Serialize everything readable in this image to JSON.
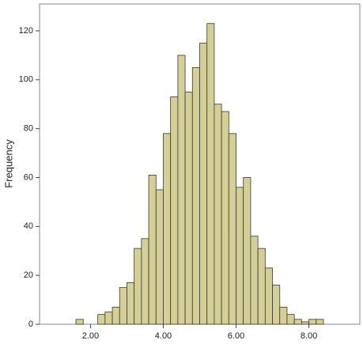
{
  "chart_data": {
    "type": "histogram",
    "y_label": "Frequency",
    "bins": [
      1.6,
      1.8,
      2.0,
      2.2,
      2.4,
      2.6,
      2.8,
      3.0,
      3.2,
      3.4,
      3.6,
      3.8,
      4.0,
      4.2,
      4.4,
      4.6,
      4.8,
      5.0,
      5.2,
      5.4,
      5.6,
      5.8,
      6.0,
      6.2,
      6.4,
      6.6,
      6.8,
      7.0,
      7.2,
      7.4,
      7.6,
      7.8,
      8.0,
      8.2,
      8.4
    ],
    "values": [
      2,
      0,
      0,
      4,
      5,
      7,
      15,
      17,
      31,
      35,
      61,
      55,
      78,
      93,
      110,
      95,
      105,
      115,
      123,
      90,
      87,
      78,
      56,
      60,
      36,
      31,
      23,
      16,
      7,
      4,
      2,
      1,
      2,
      2
    ],
    "color": "#d4cf98",
    "edge_color": "#3a3a2a",
    "xlim": [
      0.6,
      9.4
    ],
    "ylim": [
      0,
      131
    ],
    "xticks": [
      {
        "value": 2,
        "label": "2.00"
      },
      {
        "value": 4,
        "label": "4.00"
      },
      {
        "value": 6,
        "label": "6.00"
      },
      {
        "value": 8,
        "label": "8.00"
      }
    ],
    "yticks": [
      0,
      20,
      40,
      60,
      80,
      100,
      120
    ]
  }
}
